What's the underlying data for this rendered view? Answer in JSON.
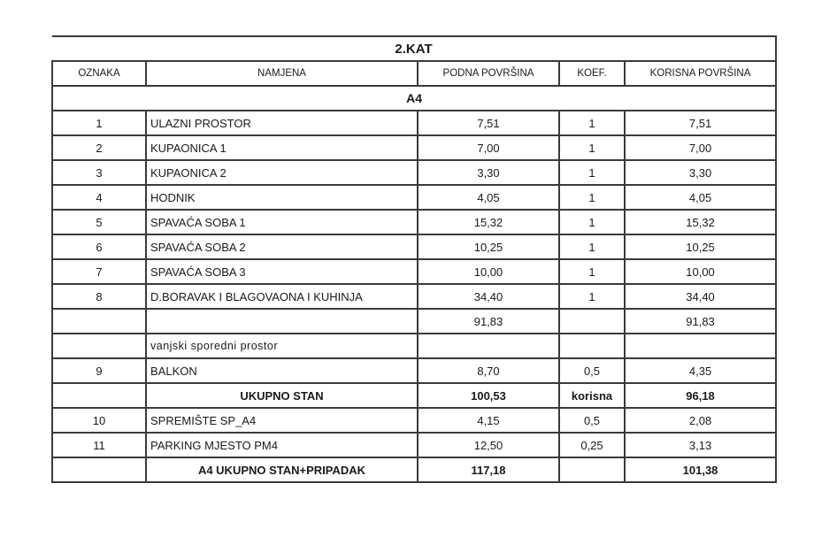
{
  "title": "2.KAT",
  "headers": [
    "OZNAKA",
    "NAMJENA",
    "PODNA POVRŠINA",
    "KOEF.",
    "KORISNA POVRŠINA"
  ],
  "section": "A4",
  "rows": [
    {
      "oznaka": "1",
      "namjena": "ULAZNI PROSTOR",
      "podna": "7,51",
      "koef": "1",
      "korisna": "7,51"
    },
    {
      "oznaka": "2",
      "namjena": "KUPAONICA 1",
      "podna": "7,00",
      "koef": "1",
      "korisna": "7,00"
    },
    {
      "oznaka": "3",
      "namjena": "KUPAONICA 2",
      "podna": "3,30",
      "koef": "1",
      "korisna": "3,30"
    },
    {
      "oznaka": "4",
      "namjena": "HODNIK",
      "podna": "4,05",
      "koef": "1",
      "korisna": "4,05"
    },
    {
      "oznaka": "5",
      "namjena": "SPAVAĆA SOBA 1",
      "podna": "15,32",
      "koef": "1",
      "korisna": "15,32"
    },
    {
      "oznaka": "6",
      "namjena": "SPAVAĆA SOBA 2",
      "podna": "10,25",
      "koef": "1",
      "korisna": "10,25"
    },
    {
      "oznaka": "7",
      "namjena": "SPAVAĆA SOBA 3",
      "podna": "10,00",
      "koef": "1",
      "korisna": "10,00"
    },
    {
      "oznaka": "8",
      "namjena": "D.BORAVAK I BLAGOVAONA I KUHINJA",
      "podna": "34,40",
      "koef": "1",
      "korisna": "34,40"
    }
  ],
  "subtotal": {
    "podna": "91,83",
    "korisna": "91,83"
  },
  "outdoor_label": "vanjski sporedni prostor",
  "balkon": {
    "oznaka": "9",
    "namjena": "BALKON",
    "podna": "8,70",
    "koef": "0,5",
    "korisna": "4,35"
  },
  "ukupno_stan": {
    "namjena": "UKUPNO STAN",
    "podna": "100,53",
    "koef": "korisna",
    "korisna": "96,18"
  },
  "extras": [
    {
      "oznaka": "10",
      "namjena": "SPREMIŠTE SP_A4",
      "podna": "4,15",
      "koef": "0,5",
      "korisna": "2,08"
    },
    {
      "oznaka": "11",
      "namjena": "PARKING MJESTO PM4",
      "podna": "12,50",
      "koef": "0,25",
      "korisna": "3,13"
    }
  ],
  "grand_total": {
    "namjena": "A4 UKUPNO STAN+PRIPADAK",
    "podna": "117,18",
    "korisna": "101,38"
  }
}
